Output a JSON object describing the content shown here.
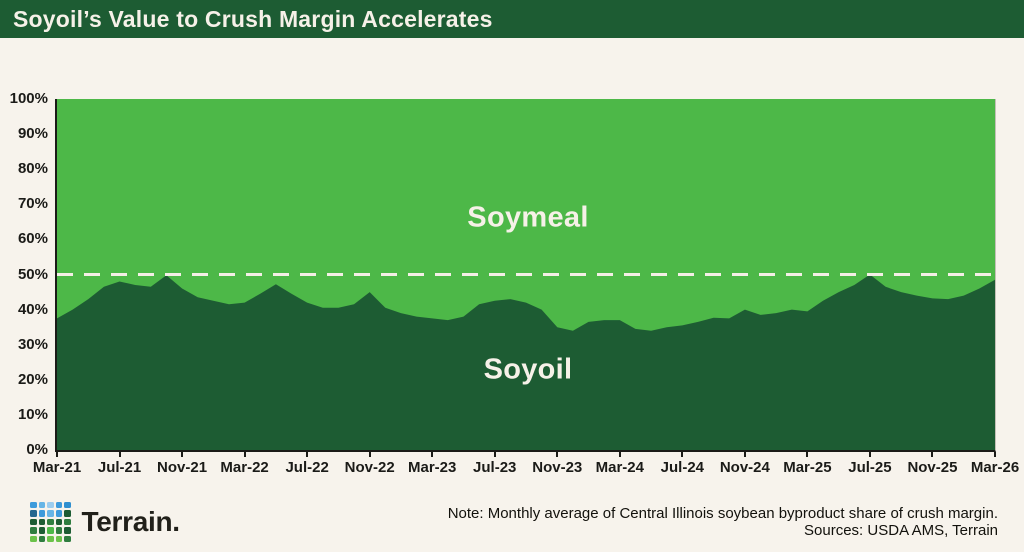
{
  "banner": {
    "title": "Soyoil’s Value to Crush Margin Accelerates"
  },
  "colors": {
    "background": "#f7f3ec",
    "banner_green": "#1d5c33",
    "soyoil_dark_green": "#1d5c33",
    "soymeal_light_green": "#4db848",
    "reference_line": "#f4efe6",
    "axis_text": "#1b1b18",
    "area_label_text": "#f6f1e8"
  },
  "chart_data": {
    "type": "area",
    "stacked": true,
    "percent_stacked": true,
    "title": "Soyoil’s Value to Crush Margin Accelerates",
    "xlabel": "",
    "ylabel": "",
    "ylim": [
      0,
      100
    ],
    "y_tick_step": 10,
    "grid": false,
    "legend_position": "labels-inside-areas",
    "y_tick_labels": [
      "0%",
      "10%",
      "20%",
      "30%",
      "40%",
      "50%",
      "60%",
      "70%",
      "80%",
      "90%",
      "100%"
    ],
    "x_tick_labels": [
      "Mar-21",
      "Jul-21",
      "Nov-21",
      "Mar-22",
      "Jul-22",
      "Nov-22",
      "Mar-23",
      "Jul-23",
      "Nov-23",
      "Mar-24",
      "Jul-24",
      "Nov-24",
      "Mar-25",
      "Jul-25",
      "Nov-25",
      "Mar-26"
    ],
    "x": [
      "Mar-21",
      "Apr-21",
      "May-21",
      "Jun-21",
      "Jul-21",
      "Aug-21",
      "Sep-21",
      "Oct-21",
      "Nov-21",
      "Dec-21",
      "Jan-22",
      "Feb-22",
      "Mar-22",
      "Apr-22",
      "May-22",
      "Jun-22",
      "Jul-22",
      "Aug-22",
      "Sep-22",
      "Oct-22",
      "Nov-22",
      "Dec-22",
      "Jan-23",
      "Feb-23",
      "Mar-23",
      "Apr-23",
      "May-23",
      "Jun-23",
      "Jul-23",
      "Aug-23",
      "Sep-23",
      "Oct-23",
      "Nov-23",
      "Dec-23",
      "Jan-24",
      "Feb-24",
      "Mar-24",
      "Apr-24",
      "May-24",
      "Jun-24",
      "Jul-24",
      "Aug-24",
      "Sep-24",
      "Oct-24",
      "Nov-24",
      "Dec-24",
      "Jan-25",
      "Feb-25",
      "Mar-25",
      "Apr-25",
      "May-25",
      "Jun-25",
      "Jul-25",
      "Aug-25",
      "Sep-25",
      "Oct-25",
      "Nov-25",
      "Dec-25",
      "Jan-26",
      "Feb-26",
      "Mar-26"
    ],
    "series": [
      {
        "name": "Soyoil",
        "color": "#1d5c33",
        "values": [
          37.5,
          40,
          43,
          46.5,
          48,
          47,
          46.5,
          49.8,
          46,
          43.5,
          42.5,
          41.5,
          42,
          44.5,
          47.2,
          44.5,
          42,
          40.5,
          40.5,
          41.5,
          45,
          40.5,
          39,
          38,
          37.5,
          37,
          38,
          41.5,
          42.5,
          43,
          42,
          40,
          35,
          34,
          36.5,
          37,
          37,
          34.5,
          34,
          35,
          35.5,
          36.5,
          37.7,
          37.5,
          40,
          38.5,
          39,
          40,
          39.5,
          42.5,
          45,
          47,
          50,
          46.5,
          45,
          44,
          43.2,
          43,
          44,
          46,
          48.5
        ]
      },
      {
        "name": "Soymeal",
        "color": "#4db848",
        "values": [
          62.5,
          60,
          57,
          53.5,
          52,
          53,
          53.5,
          50.2,
          54,
          56.5,
          57.5,
          58.5,
          58,
          55.5,
          52.8,
          55.5,
          58,
          59.5,
          59.5,
          58.5,
          55,
          59.5,
          61,
          62,
          62.5,
          63,
          62,
          58.5,
          57.5,
          57,
          58,
          60,
          65,
          66,
          63.5,
          63,
          63,
          65.5,
          66,
          65,
          64.5,
          63.5,
          62.3,
          62.5,
          60,
          61.5,
          61,
          60,
          60.5,
          57.5,
          55,
          53,
          50,
          53.5,
          55,
          56,
          56.8,
          57,
          56,
          54,
          51.5
        ]
      }
    ],
    "reference_line": {
      "value": 50,
      "style": "dashed",
      "color": "#f4efe6"
    }
  },
  "footer": {
    "brand": "Terrain.",
    "note": "Note: Monthly average of Central Illinois soybean byproduct share of crush margin.",
    "sources": "Sources: USDA AMS, Terrain",
    "logo_grid": [
      [
        "#3e9bdb",
        "#67b5e6",
        "#9ccdef",
        "#3e9bdb",
        "#2f8fd0"
      ],
      [
        "#25678f",
        "#3e9bdb",
        "#67b5e6",
        "#3e9bdb",
        "#1d5c33"
      ],
      [
        "#1d5c33",
        "#1d5c33",
        "#2f7d3f",
        "#1d5c33",
        "#2f7d3f"
      ],
      [
        "#2f7d3f",
        "#1d5c33",
        "#4db848",
        "#2f7d3f",
        "#1d5c33"
      ],
      [
        "#6cc24a",
        "#2f7d3f",
        "#6cc24a",
        "#6cc24a",
        "#2f7d3f"
      ]
    ]
  }
}
